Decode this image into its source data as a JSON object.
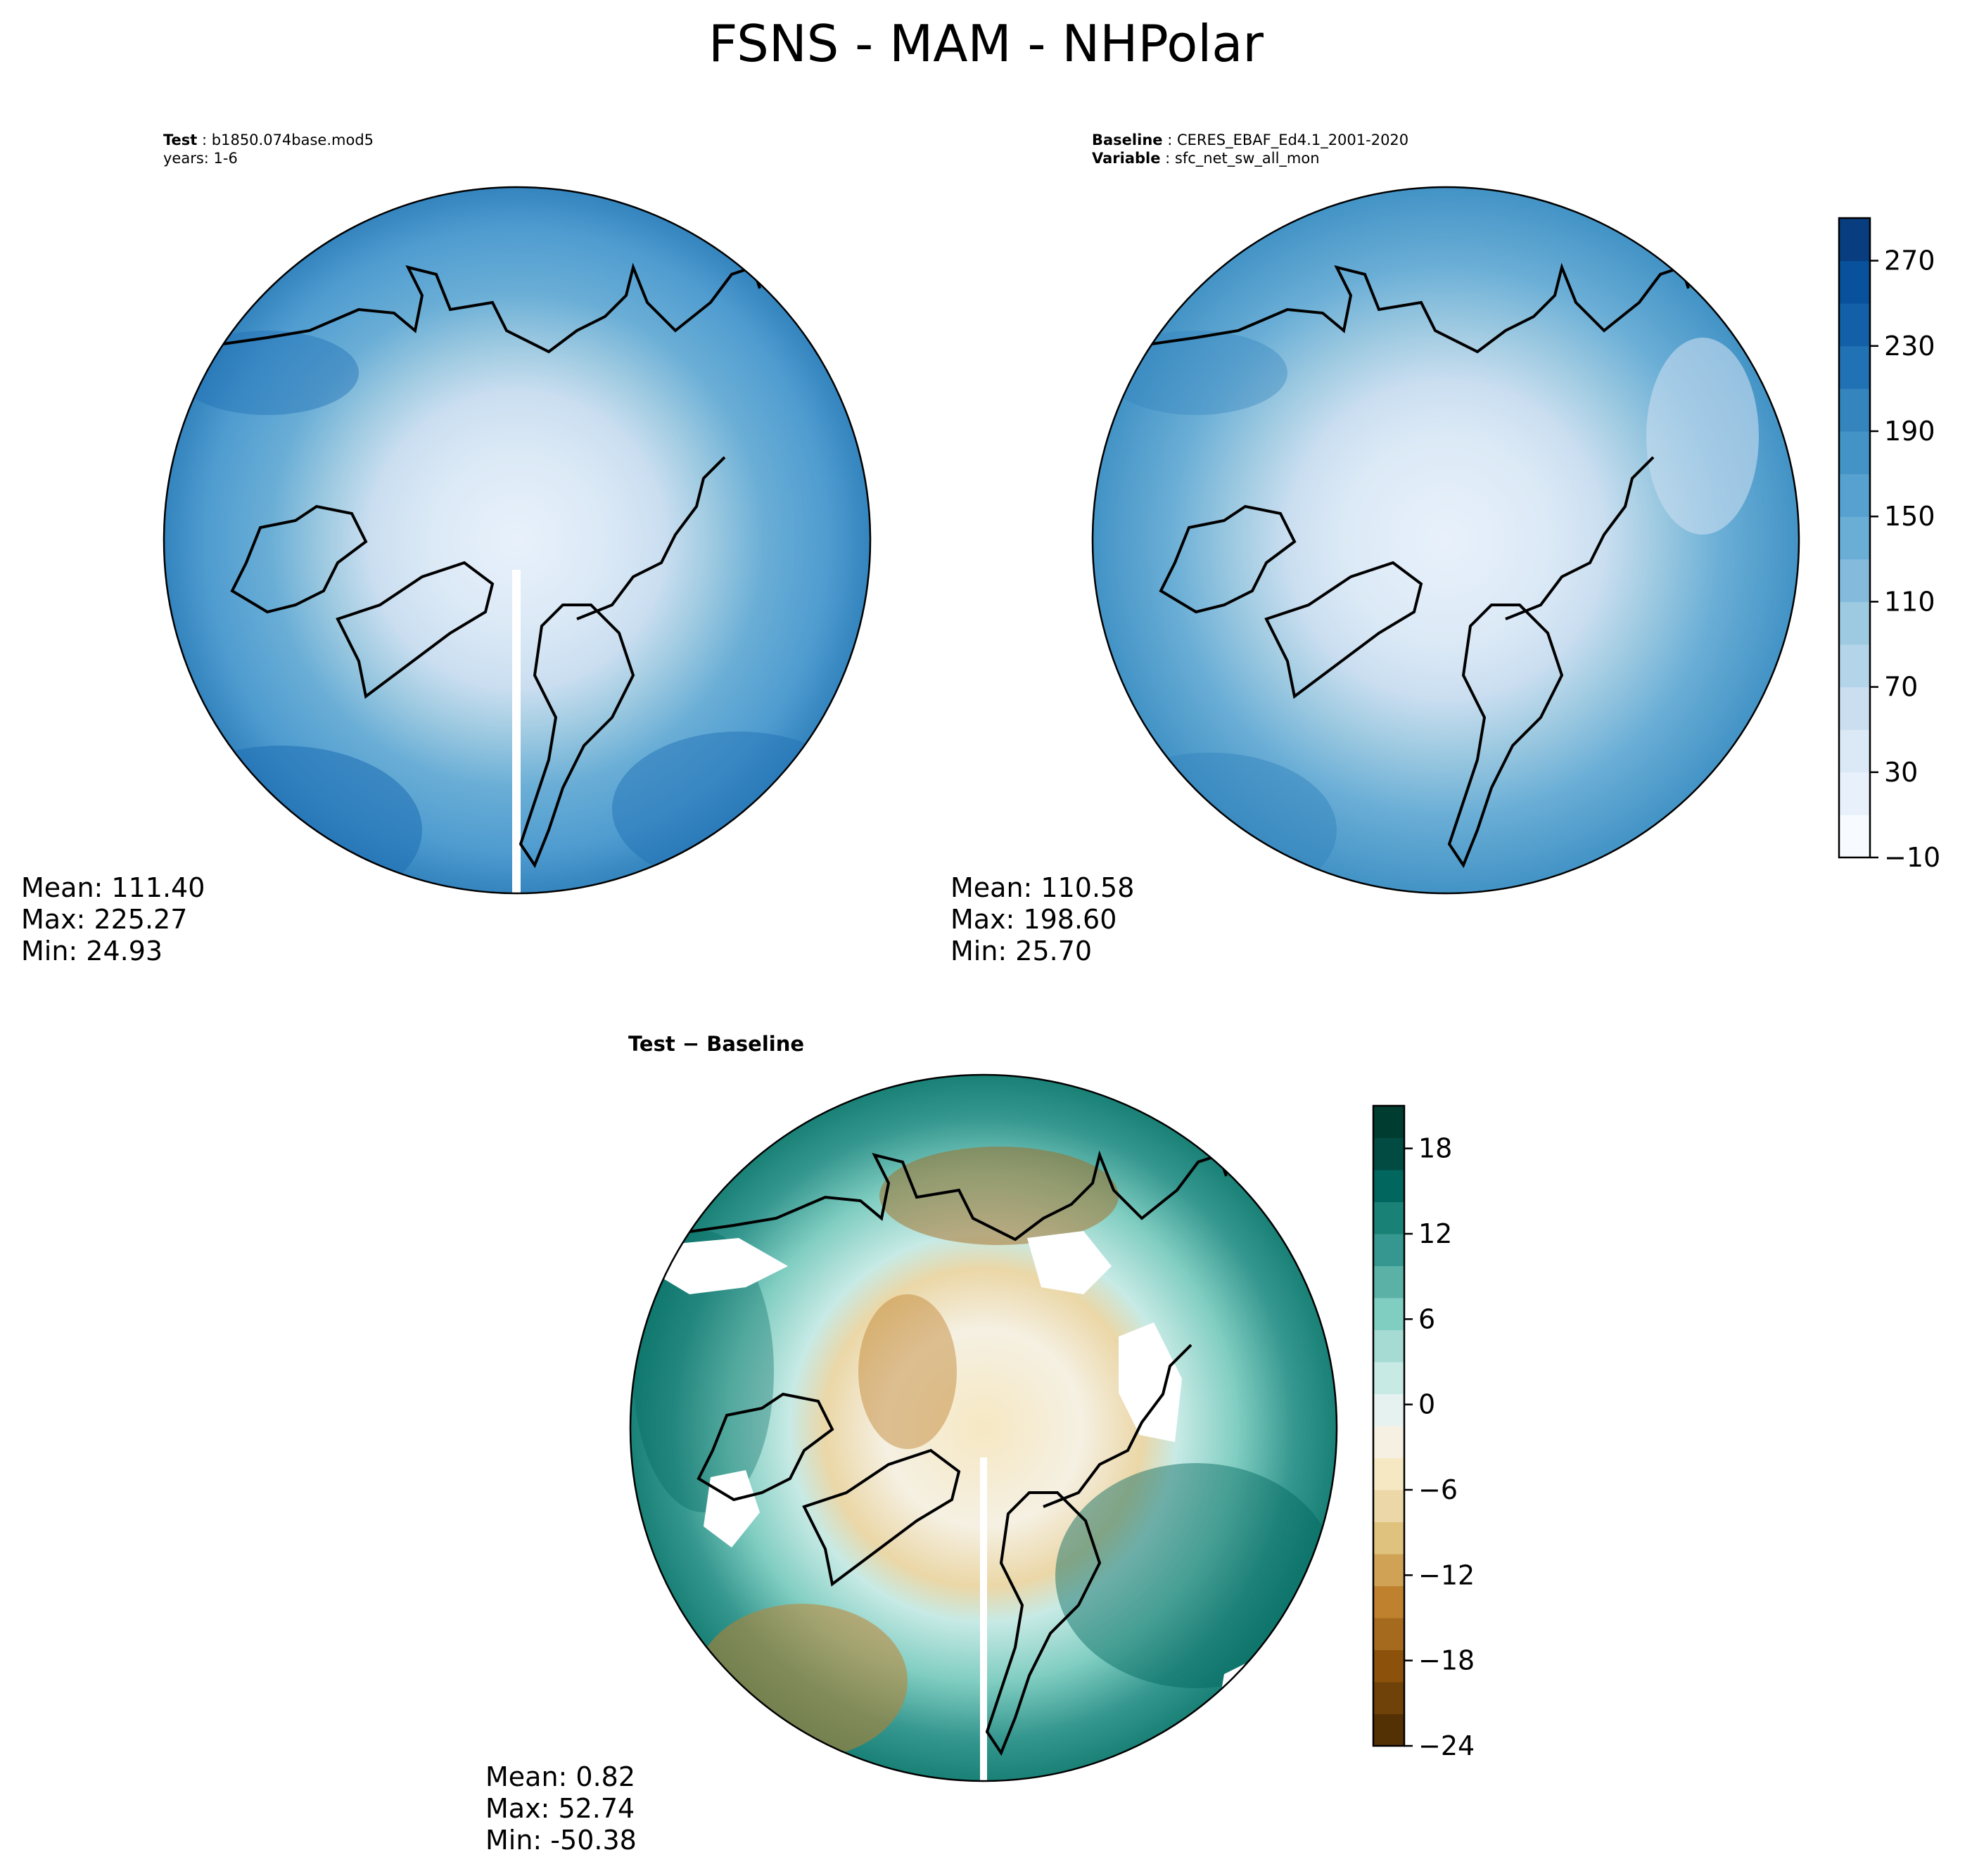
{
  "title": "FSNS - MAM - NHPolar",
  "panels": {
    "test": {
      "label_key": "Test",
      "label_value": "b1850.074base.mod5",
      "label_line2": "years: 1-6",
      "mean": "Mean: 111.40",
      "max": "Max: 225.27",
      "min": "Min: 24.93"
    },
    "baseline": {
      "label_key": "Baseline",
      "label_value": "CERES_EBAF_Ed4.1_2001-2020",
      "label2_key": "Variable",
      "label2_value": "sfc_net_sw_all_mon",
      "mean": "Mean: 110.58",
      "max": "Max: 198.60",
      "min": "Min: 25.70"
    },
    "diff": {
      "label": "Test − Baseline",
      "mean": "Mean:  0.82",
      "max": "Max: 52.74",
      "min": "Min: -50.38"
    }
  },
  "colorbars": {
    "main": {
      "ticks": [
        "270",
        "230",
        "190",
        "150",
        "110",
        "70",
        "30",
        "−10"
      ],
      "tick_values": [
        270,
        230,
        190,
        150,
        110,
        70,
        30,
        -10
      ],
      "range": [
        -10,
        290
      ],
      "colors": [
        "#f7fbff",
        "#e8f1fb",
        "#dbe9f6",
        "#cadef0",
        "#b4d4e9",
        "#9ecae1",
        "#84bbdd",
        "#6aaed6",
        "#56a1cf",
        "#4393c6",
        "#3484be",
        "#2171b5",
        "#1460a8",
        "#08519c",
        "#083d7f"
      ]
    },
    "diff": {
      "ticks": [
        "18",
        "12",
        "6",
        "0",
        "−6",
        "−12",
        "−18",
        "−24"
      ],
      "tick_values": [
        18,
        12,
        6,
        0,
        -6,
        -12,
        -18,
        -24
      ],
      "range": [
        -24,
        21
      ],
      "colors": [
        "#543005",
        "#6f420a",
        "#8c510a",
        "#a66a1e",
        "#bf812d",
        "#cfa256",
        "#dfc27d",
        "#ebd7a7",
        "#f6e8c3",
        "#f5f0e2",
        "#e6f2f0",
        "#c7eae5",
        "#a5dbd2",
        "#80cdc1",
        "#5cb1a6",
        "#35978f",
        "#1a8177",
        "#01665e",
        "#024b43",
        "#003c30"
      ]
    }
  }
}
